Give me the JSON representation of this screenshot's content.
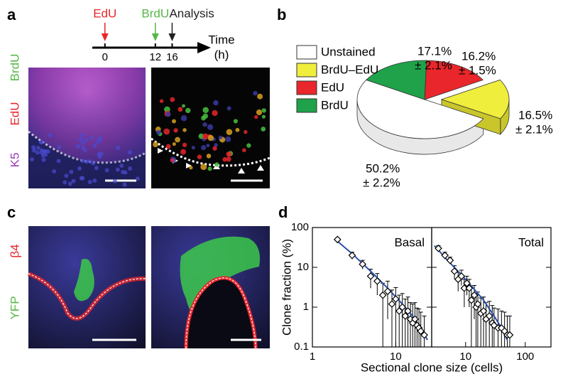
{
  "panel_labels": [
    "a",
    "b",
    "c",
    "d"
  ],
  "timeline": {
    "type": "timeline",
    "xlabel": "Time",
    "xunit": "(h)",
    "xlim": [
      -3,
      21.5
    ],
    "xticks": [
      0,
      12,
      16
    ],
    "events": [
      {
        "name": "EdU",
        "time": 0,
        "color": "#e8262b"
      },
      {
        "name": "BrdU",
        "time": 12,
        "color": "#56b847"
      },
      {
        "name": "Analysis",
        "time": 16,
        "color": "#222222"
      }
    ]
  },
  "stain_labels_a": [
    {
      "text": "K5",
      "color": "#9c3cb8"
    },
    {
      "text": "EdU",
      "color": "#e8262b"
    },
    {
      "text": "BrdU",
      "color": "#56b847"
    }
  ],
  "stain_labels_c": [
    {
      "text": "YFP",
      "color": "#56b847"
    },
    {
      "text": "β4",
      "color": "#e8262b"
    }
  ],
  "pie": {
    "type": "pie",
    "categories": [
      "Unstained",
      "BrdU–EdU",
      "EdU",
      "BrdU"
    ],
    "colors": [
      "#ffffff",
      "#f0ee3c",
      "#e8262b",
      "#1fa24a"
    ],
    "values": [
      50.2,
      16.5,
      16.2,
      17.1
    ],
    "value_labels": [
      "50.2%",
      "16.5%",
      "16.2%",
      "17.1%"
    ],
    "error_labels": [
      "± 2.2%",
      "± 2.1%",
      "± 1.5%",
      "± 2.1%"
    ],
    "explode": [
      false,
      true,
      false,
      false
    ]
  },
  "clone_plot": {
    "ylabel": "Clone fraction (%)",
    "xlabel": "Sectional clone size (cells)",
    "log_scale": true,
    "ylim": [
      0.1,
      100
    ],
    "yticks": [
      0.1,
      1,
      10,
      100
    ],
    "panels": [
      {
        "type": "scatter",
        "title": "Basal",
        "xlim": [
          1,
          27
        ],
        "xticks": [
          1,
          10
        ],
        "x": [
          2,
          3,
          4,
          5,
          6,
          7,
          8,
          9,
          10,
          11,
          12,
          13,
          14,
          15,
          16,
          17,
          18,
          19,
          20,
          22
        ],
        "values": [
          50,
          20,
          12,
          6,
          4.5,
          2,
          2.5,
          1.2,
          1.6,
          0.8,
          1,
          0.6,
          0.8,
          0.5,
          0.4,
          0.5,
          0.35,
          0.3,
          0.25,
          0.2
        ],
        "errors": [
          5,
          4,
          3,
          3,
          2.5,
          2,
          2,
          1.5,
          1.5,
          1.2,
          1.2,
          1,
          1,
          0.8,
          0.8,
          0.8,
          0.6,
          0.6,
          0.5,
          0.4
        ],
        "fit": {
          "color": "#2a4fa8",
          "x": [
            2,
            3,
            5,
            8,
            12,
            16,
            20,
            24
          ],
          "values": [
            45,
            22,
            8,
            3,
            1.2,
            0.6,
            0.3,
            0.15
          ]
        }
      },
      {
        "type": "scatter",
        "title": "Total",
        "xlim": [
          2.7,
          270
        ],
        "xticks": [
          10,
          100
        ],
        "x": [
          3.5,
          4.5,
          5.5,
          6.5,
          7.5,
          8.5,
          9.5,
          10.5,
          11.5,
          12.5,
          14,
          15,
          16,
          18,
          20,
          22,
          25,
          28,
          30,
          35,
          40,
          45,
          50,
          55
        ],
        "values": [
          30,
          20,
          15,
          8,
          5,
          6,
          3,
          4,
          3,
          1.5,
          2,
          1,
          1.2,
          0.7,
          0.8,
          0.5,
          0.6,
          0.4,
          0.35,
          0.3,
          0.3,
          0.25,
          0.2,
          0.2
        ],
        "errors": [
          5,
          4,
          3,
          3,
          2.5,
          2.5,
          2,
          2,
          2,
          1.5,
          1.5,
          1.2,
          1.2,
          1,
          1,
          0.8,
          0.8,
          0.7,
          0.6,
          0.6,
          0.5,
          0.5,
          0.4,
          0.4
        ],
        "fit": {
          "color": "#2a4fa8",
          "x": [
            3,
            5,
            10,
            20,
            30,
            40,
            50
          ],
          "values": [
            35,
            15,
            5,
            1.5,
            0.6,
            0.3,
            0.15
          ]
        }
      }
    ]
  }
}
